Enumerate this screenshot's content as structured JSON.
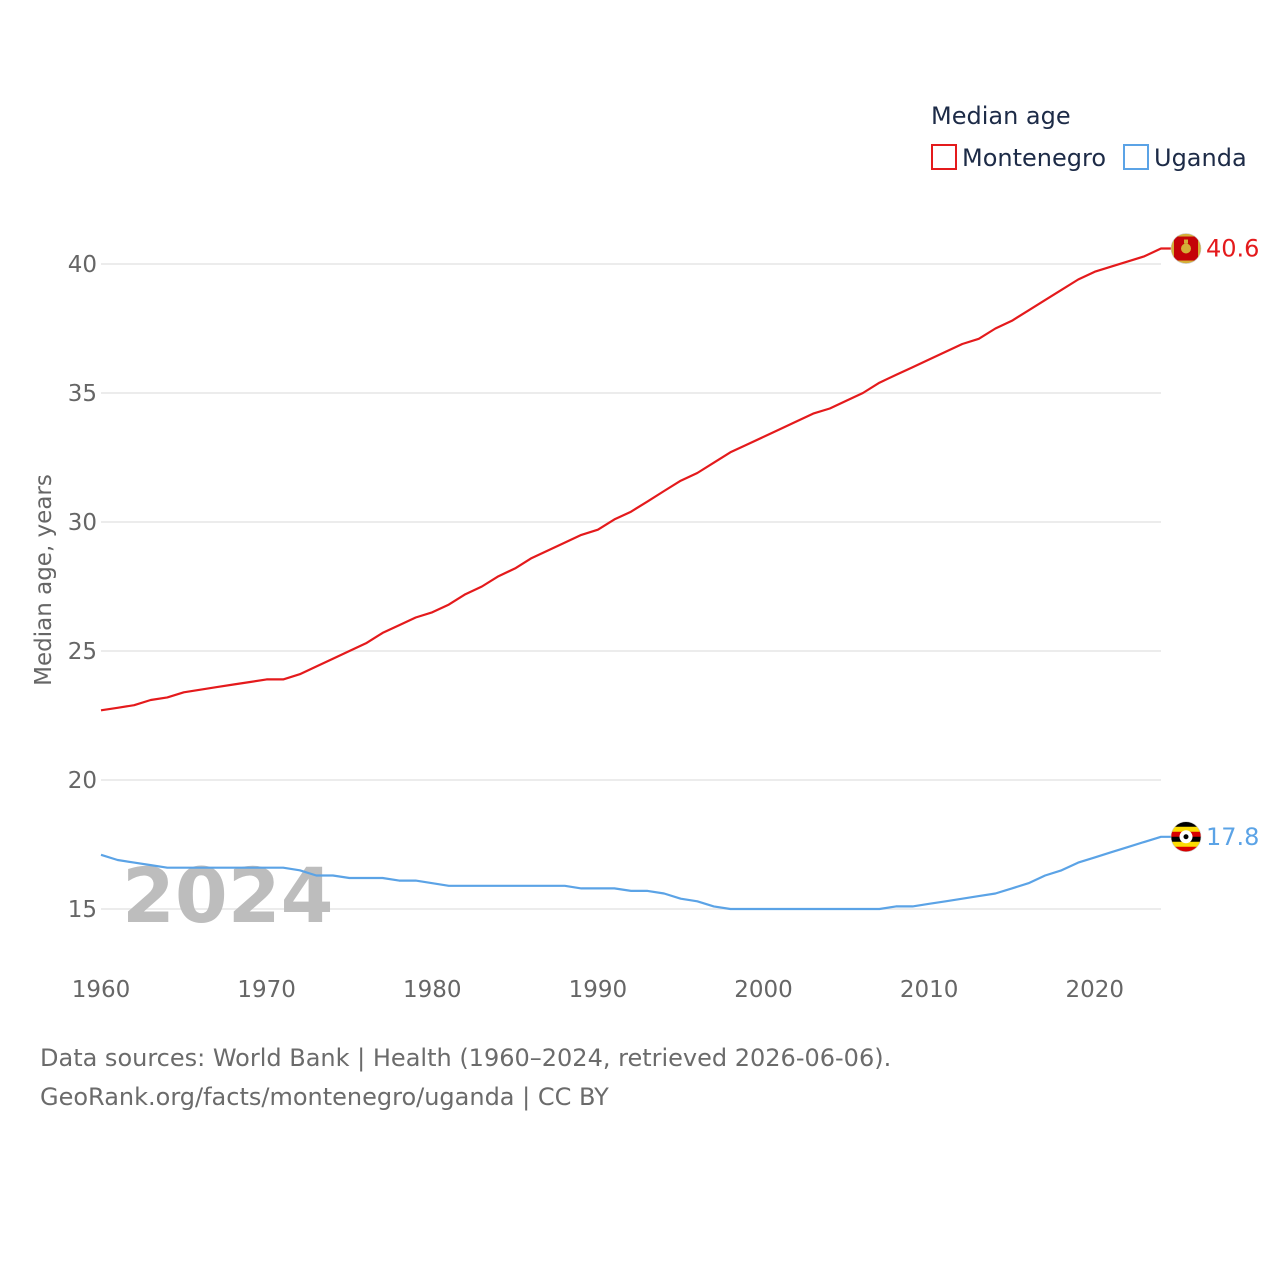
{
  "chart_data": {
    "type": "line",
    "title": "Median age",
    "xlabel": "",
    "ylabel": "Median age, years",
    "xlim": [
      1960,
      2024
    ],
    "ylim": [
      13,
      42
    ],
    "yticks": [
      15,
      20,
      25,
      30,
      35,
      40
    ],
    "xticks": [
      1960,
      1970,
      1980,
      1990,
      2000,
      2010,
      2020
    ],
    "legend_position": "top-right",
    "watermark_year": "2024",
    "x": [
      1960,
      1961,
      1962,
      1963,
      1964,
      1965,
      1966,
      1967,
      1968,
      1969,
      1970,
      1971,
      1972,
      1973,
      1974,
      1975,
      1976,
      1977,
      1978,
      1979,
      1980,
      1981,
      1982,
      1983,
      1984,
      1985,
      1986,
      1987,
      1988,
      1989,
      1990,
      1991,
      1992,
      1993,
      1994,
      1995,
      1996,
      1997,
      1998,
      1999,
      2000,
      2001,
      2002,
      2003,
      2004,
      2005,
      2006,
      2007,
      2008,
      2009,
      2010,
      2011,
      2012,
      2013,
      2014,
      2015,
      2016,
      2017,
      2018,
      2019,
      2020,
      2021,
      2022,
      2023,
      2024
    ],
    "series": [
      {
        "name": "Montenegro",
        "color": "#e41a1c",
        "end_label": "40.6",
        "values": [
          22.7,
          22.8,
          22.9,
          23.1,
          23.2,
          23.4,
          23.5,
          23.6,
          23.7,
          23.8,
          23.9,
          23.9,
          24.1,
          24.4,
          24.7,
          25.0,
          25.3,
          25.7,
          26.0,
          26.3,
          26.5,
          26.8,
          27.2,
          27.5,
          27.9,
          28.2,
          28.6,
          28.9,
          29.2,
          29.5,
          29.7,
          30.1,
          30.4,
          30.8,
          31.2,
          31.6,
          31.9,
          32.3,
          32.7,
          33.0,
          33.3,
          33.6,
          33.9,
          34.2,
          34.4,
          34.7,
          35.0,
          35.4,
          35.7,
          36.0,
          36.3,
          36.6,
          36.9,
          37.1,
          37.5,
          37.8,
          38.2,
          38.6,
          39.0,
          39.4,
          39.7,
          39.9,
          40.1,
          40.3,
          40.6
        ]
      },
      {
        "name": "Uganda",
        "color": "#5ba3e6",
        "end_label": "17.8",
        "values": [
          17.1,
          16.9,
          16.8,
          16.7,
          16.6,
          16.6,
          16.6,
          16.6,
          16.6,
          16.6,
          16.6,
          16.6,
          16.5,
          16.3,
          16.3,
          16.2,
          16.2,
          16.2,
          16.1,
          16.1,
          16.0,
          15.9,
          15.9,
          15.9,
          15.9,
          15.9,
          15.9,
          15.9,
          15.9,
          15.8,
          15.8,
          15.8,
          15.7,
          15.7,
          15.6,
          15.4,
          15.3,
          15.1,
          15.0,
          15.0,
          15.0,
          15.0,
          15.0,
          15.0,
          15.0,
          15.0,
          15.0,
          15.0,
          15.1,
          15.1,
          15.2,
          15.3,
          15.4,
          15.5,
          15.6,
          15.8,
          16.0,
          16.3,
          16.5,
          16.8,
          17.0,
          17.2,
          17.4,
          17.6,
          17.8
        ]
      }
    ]
  },
  "footer": {
    "line1": "Data sources: World Bank | Health (1960–2024, retrieved 2026-06-06).",
    "line2": "GeoRank.org/facts/montenegro/uganda | CC BY"
  },
  "colors": {
    "grid": "#e6e6e6",
    "text": "#666666",
    "legend_text": "#1d2b47"
  }
}
